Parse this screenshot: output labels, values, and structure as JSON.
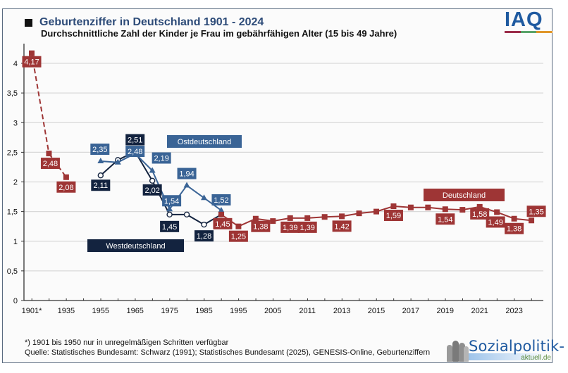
{
  "header": {
    "title": "Geburtenziffer in Deutschland 1901 - 2024",
    "subtitle": "Durchschnittliche Zahl der Kinder je Frau im gebährfähigen Alter (15 bis 49 Jahre)",
    "logo_text": "IAQ",
    "logo_bar_colors": [
      "#9b2d4a",
      "#5aa36a",
      "#e0962a"
    ]
  },
  "footer": {
    "footnote": "*) 1901 bis 1950 nur in unregelmäßigen Schritten verfügbar",
    "source": "Quelle: Statistisches Bundesamt: Schwarz (1991); Statistisches Bundesamt (2025), GENESIS-Online, Geburtenziffern",
    "logo_main": "Sozialpolitik-",
    "logo_sub": "aktuell.de"
  },
  "colors": {
    "deutschland": "#9e3535",
    "ost": "#3a6496",
    "west": "#13233f",
    "grid": "#d9d9d9",
    "axis": "#333333"
  },
  "chart_data": {
    "type": "line",
    "title": "Geburtenziffer in Deutschland 1901 - 2024",
    "subtitle": "Durchschnittliche Zahl der Kinder je Frau im gebährfähigen Alter (15 bis 49 Jahre)",
    "xlabel": "",
    "ylabel": "",
    "ylim": [
      0,
      4.3
    ],
    "yticks": [
      0,
      0.5,
      1,
      1.5,
      2,
      2.5,
      3,
      3.5,
      4
    ],
    "ytick_labels": [
      "0",
      "0,5",
      "1",
      "1,5",
      "2",
      "2,5",
      "3",
      "3,5",
      "4"
    ],
    "grid": true,
    "categories": [
      "1901*",
      "1925",
      "1935",
      "1950",
      "1955",
      "1960",
      "1965",
      "1970",
      "1975",
      "1980",
      "1985",
      "1990",
      "1995",
      "2000",
      "2005",
      "2010",
      "2011",
      "2012",
      "2013",
      "2014",
      "2015",
      "2016",
      "2017",
      "2018",
      "2019",
      "2020",
      "2021",
      "2022",
      "2023",
      "2024"
    ],
    "xtick_labels": [
      "1901*",
      "",
      "1935",
      "",
      "1955",
      "",
      "1965",
      "",
      "1975",
      "",
      "1985",
      "",
      "1995",
      "",
      "2005",
      "",
      "2011",
      "",
      "2013",
      "",
      "2015",
      "",
      "2017",
      "",
      "2019",
      "",
      "2021",
      "",
      "2023",
      ""
    ],
    "series": [
      {
        "name": "Deutschland",
        "key": "deutschland",
        "marker": "square",
        "values": [
          4.17,
          2.48,
          2.08,
          null,
          null,
          null,
          null,
          null,
          null,
          null,
          null,
          1.45,
          1.25,
          1.38,
          1.34,
          1.39,
          1.39,
          1.41,
          1.42,
          1.47,
          1.5,
          1.59,
          1.57,
          1.57,
          1.54,
          1.53,
          1.58,
          1.49,
          1.38,
          1.35
        ],
        "dashed_until_index": 2,
        "labels": {
          "0": "4,17",
          "1": "2,48",
          "2": "2,08",
          "11": "1,45",
          "12": "1,25",
          "13": "1,38",
          "15": "1,39",
          "16": "1,39",
          "18": "1,42",
          "21": "1,59",
          "24": "1,54",
          "26": "1,58",
          "27": "1,49",
          "28": "1,38",
          "29": "1,35"
        }
      },
      {
        "name": "Ostdeutschland",
        "key": "ost",
        "marker": "triangle",
        "values": [
          null,
          null,
          null,
          null,
          2.35,
          2.33,
          2.48,
          2.19,
          1.54,
          1.94,
          1.73,
          1.52,
          null,
          null,
          null,
          null,
          null,
          null,
          null,
          null,
          null,
          null,
          null,
          null,
          null,
          null,
          null,
          null,
          null,
          null
        ],
        "labels": {
          "4": "2,35",
          "6": "2,48",
          "7": "2,19",
          "8": "1,54",
          "9": "1,94",
          "11": "1,52"
        }
      },
      {
        "name": "Westdeutschland",
        "key": "west",
        "marker": "circle",
        "values": [
          null,
          null,
          null,
          null,
          2.11,
          2.37,
          2.51,
          2.02,
          1.45,
          1.45,
          1.28,
          1.45,
          null,
          null,
          null,
          null,
          null,
          null,
          null,
          null,
          null,
          null,
          null,
          null,
          null,
          null,
          null,
          null,
          null,
          null
        ],
        "labels": {
          "4": "2,11",
          "6": "2,51",
          "7": "2,02",
          "8": "1,45",
          "10": "1,28"
        }
      }
    ],
    "legend": [
      {
        "name": "Ostdeutschland",
        "placement": "upper-middle"
      },
      {
        "name": "Westdeutschland",
        "placement": "lower-left"
      },
      {
        "name": "Deutschland",
        "placement": "right"
      }
    ]
  }
}
